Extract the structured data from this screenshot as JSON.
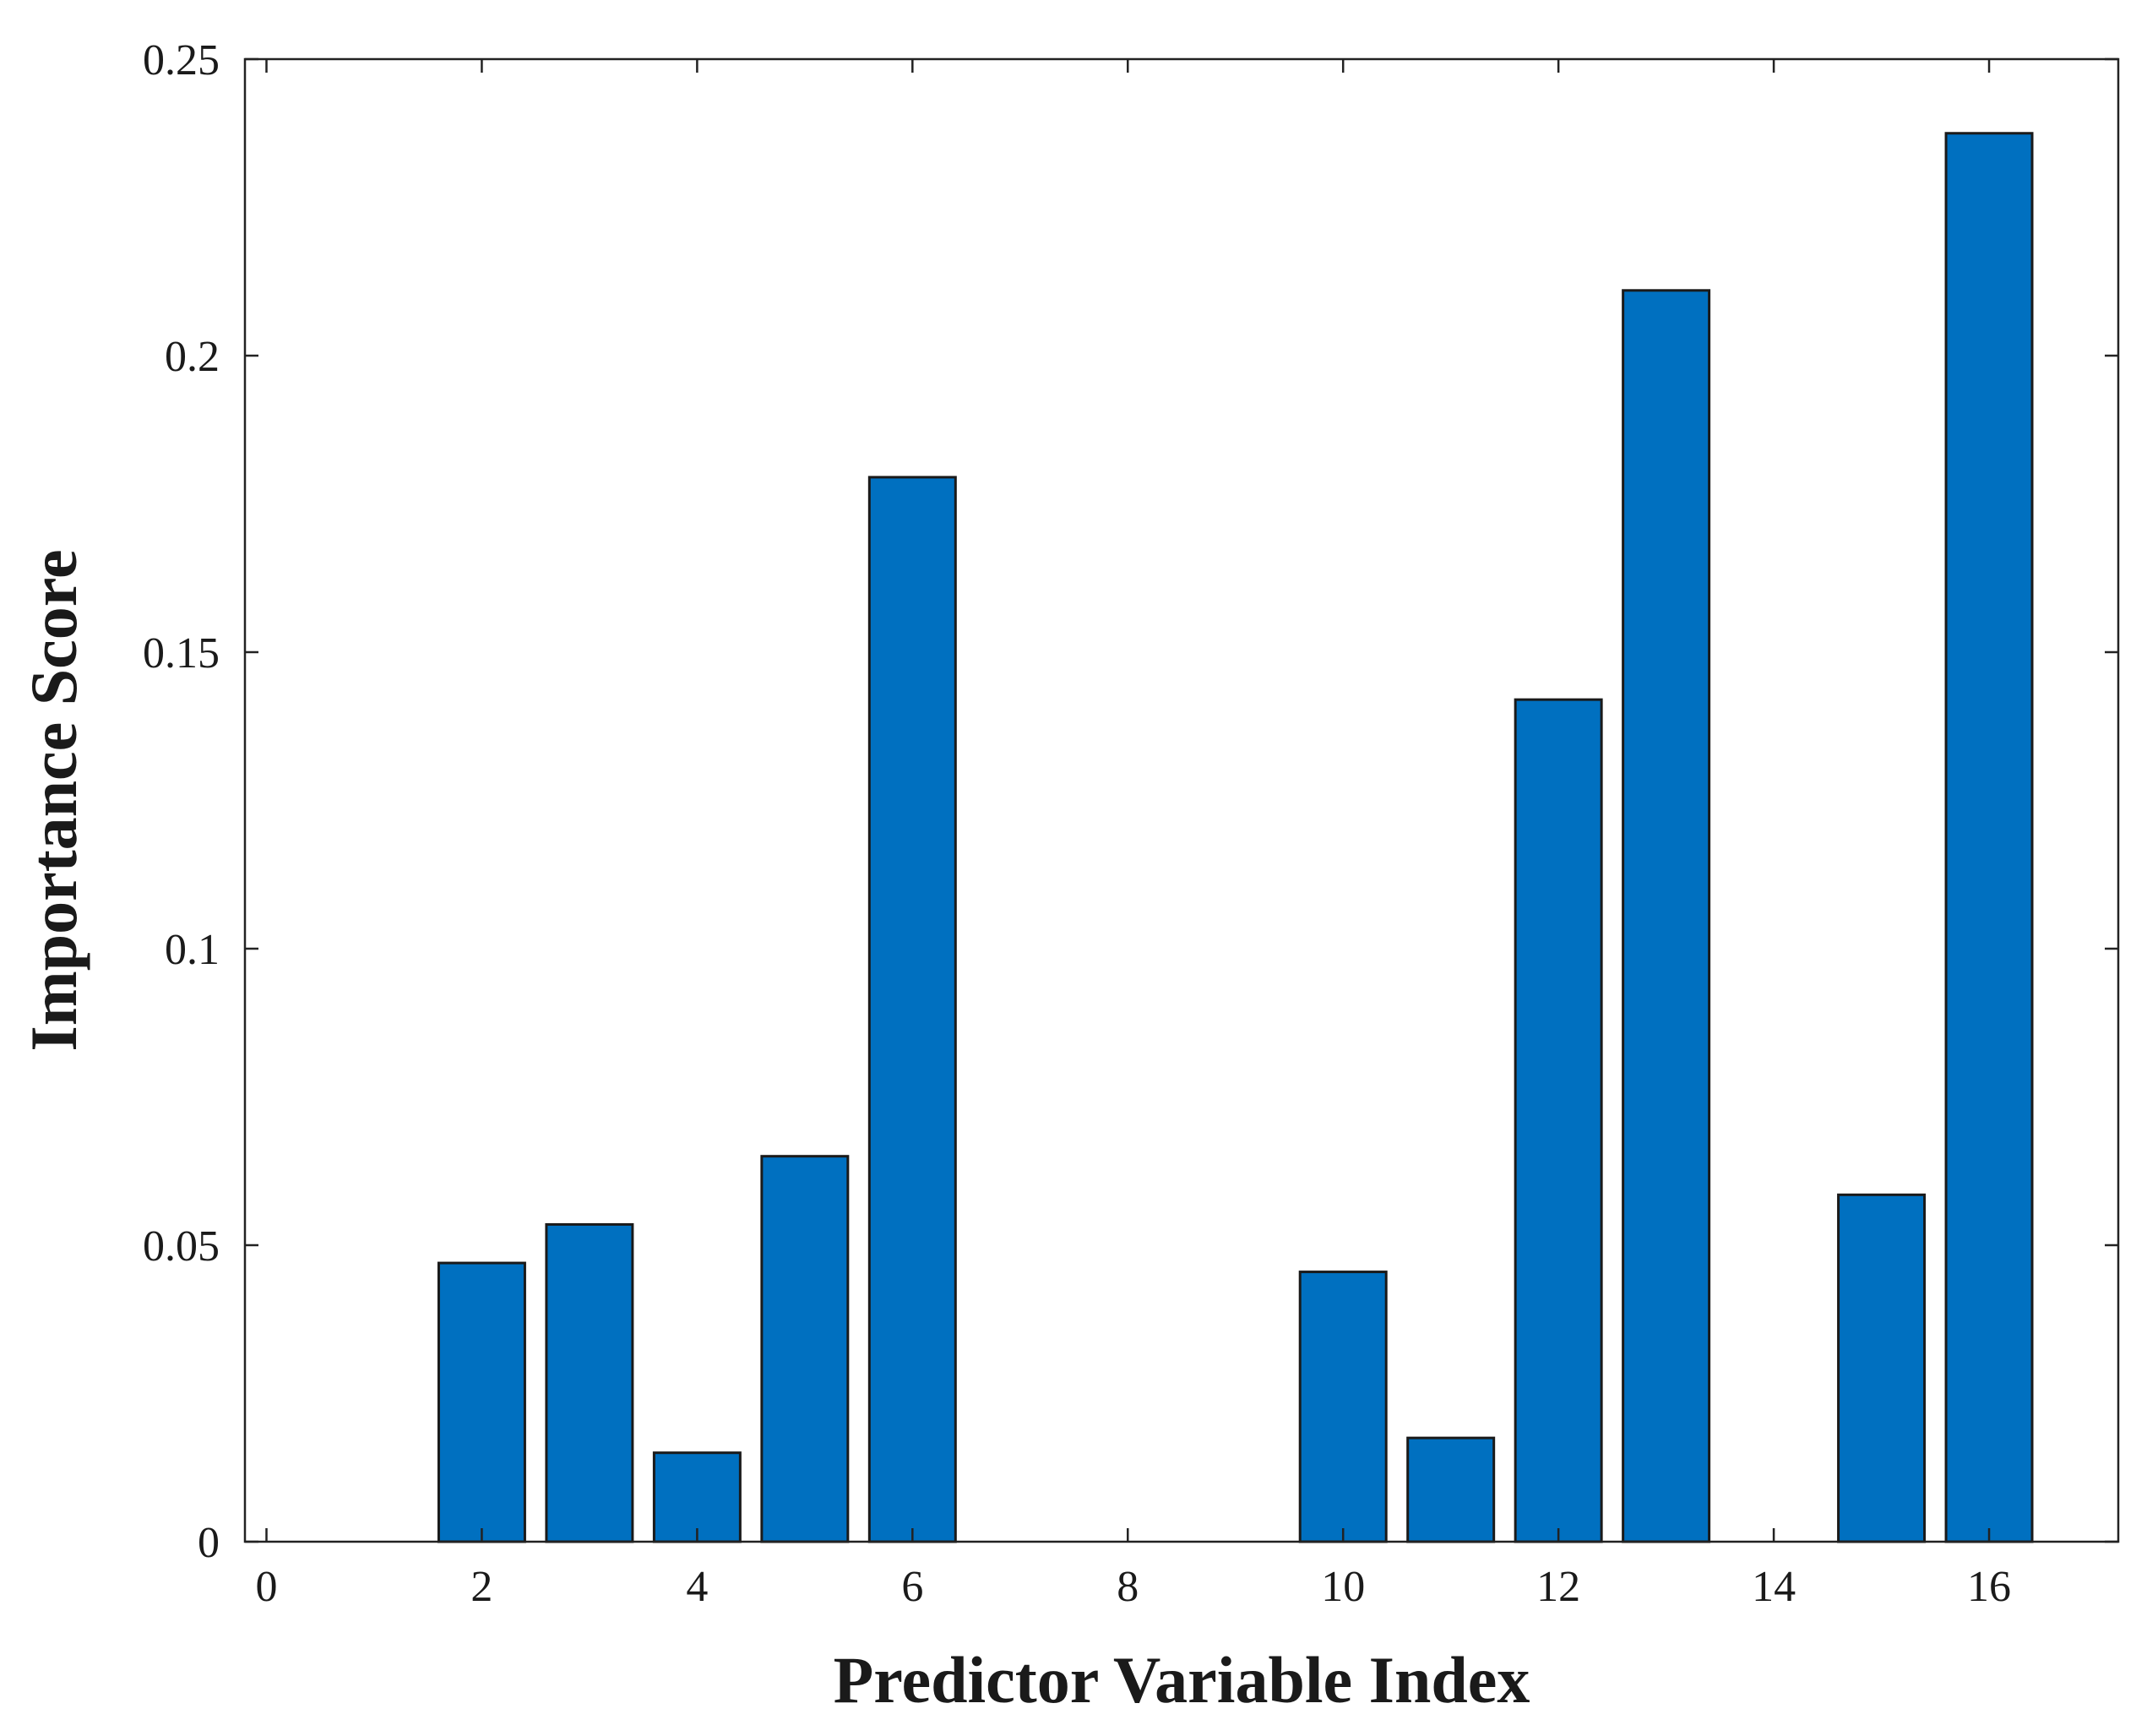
{
  "chart_data": {
    "type": "bar",
    "title": "",
    "xlabel": "Predictor Variable Index",
    "ylabel": "Importance Score",
    "x": [
      2,
      3,
      4,
      5,
      6,
      10,
      11,
      12,
      13,
      15,
      16
    ],
    "values": [
      0.047,
      0.0535,
      0.015,
      0.065,
      0.1795,
      0.0455,
      0.0175,
      0.142,
      0.211,
      0.0585,
      0.2375
    ],
    "xlim": [
      -0.2,
      17.2
    ],
    "ylim": [
      0,
      0.25
    ],
    "xticks": [
      0,
      2,
      4,
      6,
      8,
      10,
      12,
      14,
      16
    ],
    "xtick_labels": [
      "0",
      "2",
      "4",
      "6",
      "8",
      "10",
      "12",
      "14",
      "16"
    ],
    "yticks": [
      0,
      0.05,
      0.1,
      0.15,
      0.2,
      0.25
    ],
    "ytick_labels": [
      "0",
      "0.05",
      "0.1",
      "0.15",
      "0.2",
      "0.25"
    ],
    "bar_color": "#0070c0",
    "edge_color": "#1a1a1a",
    "grid": false,
    "legend": "none"
  }
}
